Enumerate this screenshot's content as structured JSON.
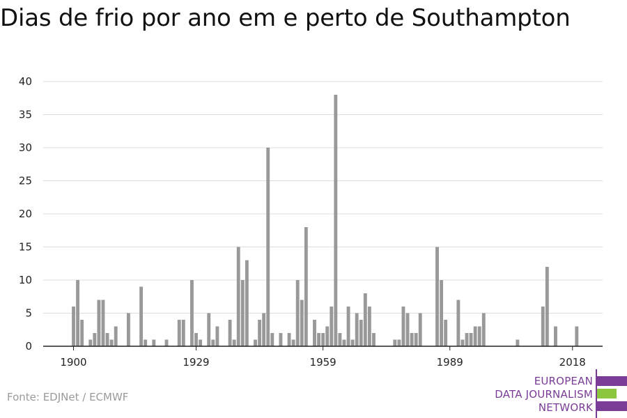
{
  "title": "Dias de frio por ano em e perto de Southampton",
  "source": "Fonte: EDJNet / ECMWF",
  "logo": {
    "lines": [
      "EUROPEAN",
      "DATA JOURNALISM",
      "NETWORK"
    ],
    "colors": {
      "purple": "#7a3c96",
      "green": "#8cc63f"
    }
  },
  "colors": {
    "bar": "#999999",
    "grid": "#dddddd",
    "axis": "#222222"
  },
  "chart_data": {
    "type": "bar",
    "title": "Dias de frio por ano em e perto de Southampton",
    "xlabel": "",
    "ylabel": "",
    "ylim": [
      0,
      40
    ],
    "yticks": [
      0,
      5,
      10,
      15,
      20,
      25,
      30,
      35,
      40
    ],
    "xticks": [
      1900,
      1929,
      1959,
      1989,
      2018
    ],
    "grid": true,
    "x": [
      1900,
      1901,
      1902,
      1903,
      1904,
      1905,
      1906,
      1907,
      1908,
      1909,
      1910,
      1911,
      1912,
      1913,
      1914,
      1915,
      1916,
      1917,
      1918,
      1919,
      1920,
      1921,
      1922,
      1923,
      1924,
      1925,
      1926,
      1927,
      1928,
      1929,
      1930,
      1931,
      1932,
      1933,
      1934,
      1935,
      1936,
      1937,
      1938,
      1939,
      1940,
      1941,
      1942,
      1943,
      1944,
      1945,
      1946,
      1947,
      1948,
      1949,
      1950,
      1951,
      1952,
      1953,
      1954,
      1955,
      1956,
      1957,
      1958,
      1959,
      1960,
      1961,
      1962,
      1963,
      1964,
      1965,
      1966,
      1967,
      1968,
      1969,
      1970,
      1971,
      1972,
      1973,
      1974,
      1975,
      1976,
      1977,
      1978,
      1979,
      1980,
      1981,
      1982,
      1983,
      1984,
      1985,
      1986,
      1987,
      1988,
      1989,
      1990,
      1991,
      1992,
      1993,
      1994,
      1995,
      1996,
      1997,
      1998,
      1999,
      2000,
      2001,
      2002,
      2003,
      2004,
      2005,
      2006,
      2007,
      2008,
      2009,
      2010,
      2011,
      2012,
      2013,
      2014,
      2015,
      2016,
      2017,
      2018,
      2019
    ],
    "values": [
      6,
      10,
      4,
      0,
      1,
      2,
      7,
      7,
      2,
      1,
      3,
      0,
      0,
      5,
      0,
      0,
      9,
      1,
      0,
      1,
      0,
      0,
      1,
      0,
      0,
      4,
      4,
      0,
      10,
      2,
      1,
      0,
      5,
      1,
      3,
      0,
      0,
      4,
      1,
      15,
      10,
      13,
      0,
      1,
      4,
      5,
      30,
      2,
      0,
      2,
      0,
      2,
      1,
      10,
      7,
      18,
      0,
      4,
      2,
      2,
      3,
      6,
      38,
      2,
      1,
      6,
      1,
      5,
      4,
      8,
      6,
      2,
      0,
      0,
      0,
      0,
      1,
      1,
      6,
      5,
      2,
      2,
      5,
      0,
      0,
      0,
      15,
      10,
      4,
      0,
      0,
      7,
      1,
      2,
      2,
      3,
      3,
      5,
      0,
      0,
      0,
      0,
      0,
      0,
      0,
      1,
      0,
      0,
      0,
      0,
      0,
      6,
      12,
      0,
      3,
      0,
      0,
      0,
      0,
      3
    ]
  }
}
